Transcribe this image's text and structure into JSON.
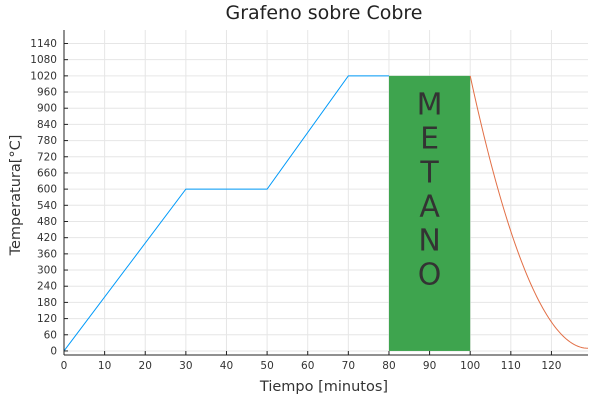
{
  "chart_data": {
    "type": "line",
    "title": "Grafeno sobre Cobre",
    "xlabel": "Tiempo [minutos]",
    "ylabel": "Temperatura[°C]",
    "xlim": [
      0,
      129
    ],
    "ylim": [
      -15,
      1190
    ],
    "xticks": [
      0,
      10,
      20,
      30,
      40,
      50,
      60,
      70,
      80,
      90,
      100,
      110,
      120
    ],
    "yticks": [
      0,
      60,
      120,
      180,
      240,
      300,
      360,
      420,
      480,
      540,
      600,
      660,
      720,
      780,
      840,
      900,
      960,
      1020,
      1080,
      1140
    ],
    "grid": true,
    "legend": "none",
    "series": [
      {
        "color": "#009AF9",
        "points": [
          [
            0,
            0
          ],
          [
            30,
            600
          ],
          [
            50,
            600
          ],
          [
            70,
            1020
          ],
          [
            80,
            1020
          ]
        ]
      },
      {
        "color": "#E26F46",
        "curve": "parabola",
        "points": [
          [
            100,
            1020
          ],
          [
            129,
            10
          ]
        ]
      }
    ],
    "shaded_region": {
      "x": [
        80,
        100
      ],
      "y": [
        0,
        1020
      ],
      "color": "#3EA44E",
      "label_letters": [
        "M",
        "E",
        "T",
        "A",
        "N",
        "O"
      ]
    }
  }
}
